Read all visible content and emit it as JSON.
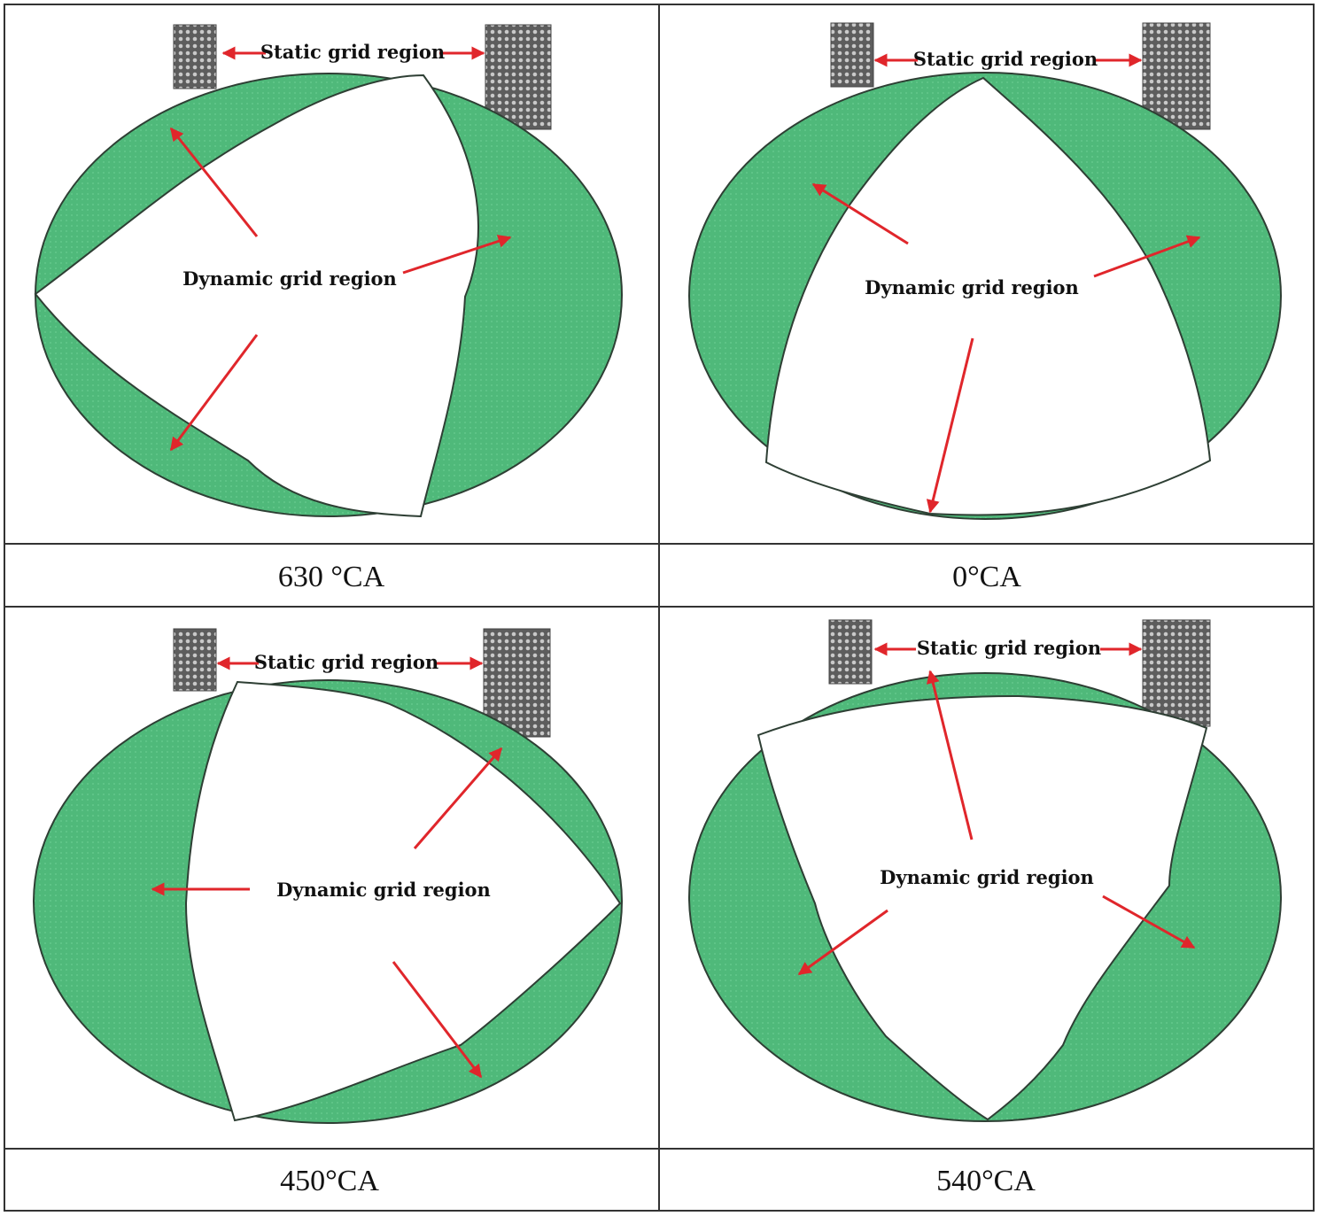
{
  "labels": {
    "static_region": "Static grid region",
    "dynamic_region": "Dynamic grid region"
  },
  "panels": [
    {
      "id": "p630",
      "caption": "630 °CA"
    },
    {
      "id": "p0",
      "caption": "0°CA"
    },
    {
      "id": "p450",
      "caption": "450°CA"
    },
    {
      "id": "p540",
      "caption": "540°CA"
    }
  ],
  "colors": {
    "mesh_green": "#4fb97a",
    "mesh_stroke": "#2e3f34",
    "arrow_red": "#e0262b",
    "port_gray": "#6f6f6f",
    "border": "#333333"
  }
}
